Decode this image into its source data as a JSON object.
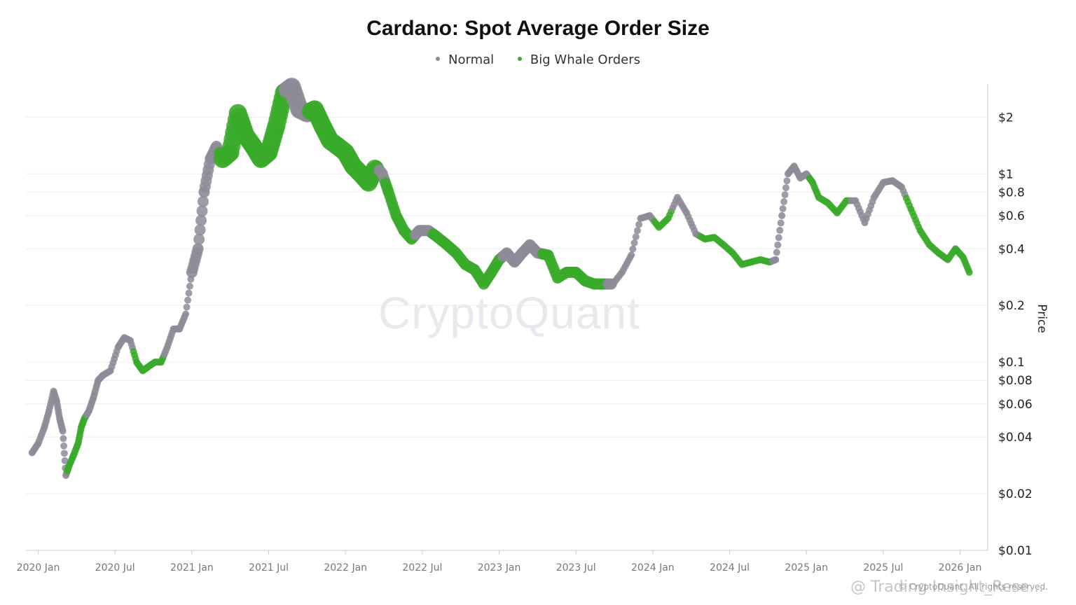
{
  "chart_data": {
    "type": "scatter",
    "title": "Cardano: Spot Average Order Size",
    "ylabel": "Price",
    "yscale": "log",
    "ylim": [
      0.01,
      3
    ],
    "xlim": [
      "2019-12",
      "2026-02"
    ],
    "grid": true,
    "legend_position": "top-center",
    "legend": [
      {
        "name": "Normal",
        "color": "#8e8b99"
      },
      {
        "name": "Big Whale Orders",
        "color": "#3aaa2a"
      }
    ],
    "y_ticks": [
      {
        "value": 2,
        "label": "$2"
      },
      {
        "value": 1,
        "label": "$1"
      },
      {
        "value": 0.8,
        "label": "$0.8"
      },
      {
        "value": 0.6,
        "label": "$0.6"
      },
      {
        "value": 0.4,
        "label": "$0.4"
      },
      {
        "value": 0.2,
        "label": "$0.2"
      },
      {
        "value": 0.1,
        "label": "$0.1"
      },
      {
        "value": 0.08,
        "label": "$0.08"
      },
      {
        "value": 0.06,
        "label": "$0.06"
      },
      {
        "value": 0.04,
        "label": "$0.04"
      },
      {
        "value": 0.02,
        "label": "$0.02"
      },
      {
        "value": 0.01,
        "label": "$0.01"
      }
    ],
    "x_ticks": [
      {
        "value": 2020.0,
        "label": "2020 Jan"
      },
      {
        "value": 2020.5,
        "label": "2020 Jul"
      },
      {
        "value": 2021.0,
        "label": "2021 Jan"
      },
      {
        "value": 2021.5,
        "label": "2021 Jul"
      },
      {
        "value": 2022.0,
        "label": "2022 Jan"
      },
      {
        "value": 2022.5,
        "label": "2022 Jul"
      },
      {
        "value": 2023.0,
        "label": "2023 Jan"
      },
      {
        "value": 2023.5,
        "label": "2023 Jul"
      },
      {
        "value": 2024.0,
        "label": "2024 Jan"
      },
      {
        "value": 2024.5,
        "label": "2024 Jul"
      },
      {
        "value": 2025.0,
        "label": "2025 Jan"
      },
      {
        "value": 2025.5,
        "label": "2025 Jul"
      },
      {
        "value": 2026.0,
        "label": "2026 Jan"
      }
    ],
    "series": [
      {
        "t": 2019.96,
        "price": 0.033,
        "order": "Normal",
        "size": 1
      },
      {
        "t": 2020.0,
        "price": 0.037,
        "order": "Normal",
        "size": 1
      },
      {
        "t": 2020.04,
        "price": 0.045,
        "order": "Normal",
        "size": 1
      },
      {
        "t": 2020.07,
        "price": 0.055,
        "order": "Normal",
        "size": 1
      },
      {
        "t": 2020.1,
        "price": 0.07,
        "order": "Normal",
        "size": 1
      },
      {
        "t": 2020.12,
        "price": 0.062,
        "order": "Normal",
        "size": 1
      },
      {
        "t": 2020.14,
        "price": 0.05,
        "order": "Normal",
        "size": 1
      },
      {
        "t": 2020.16,
        "price": 0.043,
        "order": "Normal",
        "size": 1
      },
      {
        "t": 2020.18,
        "price": 0.025,
        "order": "Normal",
        "size": 1
      },
      {
        "t": 2020.2,
        "price": 0.028,
        "order": "Big Whale Orders",
        "size": 1
      },
      {
        "t": 2020.23,
        "price": 0.032,
        "order": "Big Whale Orders",
        "size": 1
      },
      {
        "t": 2020.26,
        "price": 0.037,
        "order": "Big Whale Orders",
        "size": 1
      },
      {
        "t": 2020.28,
        "price": 0.045,
        "order": "Big Whale Orders",
        "size": 1
      },
      {
        "t": 2020.3,
        "price": 0.05,
        "order": "Big Whale Orders",
        "size": 1
      },
      {
        "t": 2020.33,
        "price": 0.055,
        "order": "Normal",
        "size": 1
      },
      {
        "t": 2020.36,
        "price": 0.065,
        "order": "Normal",
        "size": 1
      },
      {
        "t": 2020.39,
        "price": 0.08,
        "order": "Normal",
        "size": 1
      },
      {
        "t": 2020.42,
        "price": 0.085,
        "order": "Normal",
        "size": 1
      },
      {
        "t": 2020.47,
        "price": 0.09,
        "order": "Normal",
        "size": 1
      },
      {
        "t": 2020.52,
        "price": 0.12,
        "order": "Normal",
        "size": 1
      },
      {
        "t": 2020.56,
        "price": 0.135,
        "order": "Normal",
        "size": 1
      },
      {
        "t": 2020.6,
        "price": 0.13,
        "order": "Normal",
        "size": 1
      },
      {
        "t": 2020.64,
        "price": 0.1,
        "order": "Big Whale Orders",
        "size": 1
      },
      {
        "t": 2020.68,
        "price": 0.09,
        "order": "Big Whale Orders",
        "size": 1
      },
      {
        "t": 2020.72,
        "price": 0.095,
        "order": "Big Whale Orders",
        "size": 1
      },
      {
        "t": 2020.76,
        "price": 0.1,
        "order": "Big Whale Orders",
        "size": 1
      },
      {
        "t": 2020.8,
        "price": 0.1,
        "order": "Big Whale Orders",
        "size": 1
      },
      {
        "t": 2020.84,
        "price": 0.12,
        "order": "Normal",
        "size": 1
      },
      {
        "t": 2020.88,
        "price": 0.15,
        "order": "Normal",
        "size": 1
      },
      {
        "t": 2020.92,
        "price": 0.15,
        "order": "Normal",
        "size": 1
      },
      {
        "t": 2020.96,
        "price": 0.18,
        "order": "Normal",
        "size": 1
      },
      {
        "t": 2021.0,
        "price": 0.3,
        "order": "Normal",
        "size": 2
      },
      {
        "t": 2021.04,
        "price": 0.4,
        "order": "Normal",
        "size": 2
      },
      {
        "t": 2021.08,
        "price": 0.8,
        "order": "Normal",
        "size": 2
      },
      {
        "t": 2021.12,
        "price": 1.2,
        "order": "Normal",
        "size": 2
      },
      {
        "t": 2021.16,
        "price": 1.4,
        "order": "Normal",
        "size": 2
      },
      {
        "t": 2021.2,
        "price": 1.2,
        "order": "Big Whale Orders",
        "size": 3
      },
      {
        "t": 2021.25,
        "price": 1.3,
        "order": "Big Whale Orders",
        "size": 3
      },
      {
        "t": 2021.3,
        "price": 2.1,
        "order": "Big Whale Orders",
        "size": 3
      },
      {
        "t": 2021.35,
        "price": 1.6,
        "order": "Big Whale Orders",
        "size": 3
      },
      {
        "t": 2021.4,
        "price": 1.4,
        "order": "Big Whale Orders",
        "size": 3
      },
      {
        "t": 2021.45,
        "price": 1.2,
        "order": "Big Whale Orders",
        "size": 3
      },
      {
        "t": 2021.5,
        "price": 1.3,
        "order": "Big Whale Orders",
        "size": 3
      },
      {
        "t": 2021.55,
        "price": 1.8,
        "order": "Big Whale Orders",
        "size": 3
      },
      {
        "t": 2021.6,
        "price": 2.7,
        "order": "Big Whale Orders",
        "size": 3
      },
      {
        "t": 2021.65,
        "price": 2.9,
        "order": "Normal",
        "size": 3
      },
      {
        "t": 2021.7,
        "price": 2.2,
        "order": "Normal",
        "size": 3
      },
      {
        "t": 2021.75,
        "price": 2.1,
        "order": "Normal",
        "size": 3
      },
      {
        "t": 2021.8,
        "price": 2.2,
        "order": "Big Whale Orders",
        "size": 3
      },
      {
        "t": 2021.85,
        "price": 1.8,
        "order": "Big Whale Orders",
        "size": 3
      },
      {
        "t": 2021.9,
        "price": 1.5,
        "order": "Big Whale Orders",
        "size": 3
      },
      {
        "t": 2021.95,
        "price": 1.4,
        "order": "Big Whale Orders",
        "size": 3
      },
      {
        "t": 2022.0,
        "price": 1.3,
        "order": "Big Whale Orders",
        "size": 3
      },
      {
        "t": 2022.05,
        "price": 1.1,
        "order": "Big Whale Orders",
        "size": 3
      },
      {
        "t": 2022.1,
        "price": 1.0,
        "order": "Big Whale Orders",
        "size": 3
      },
      {
        "t": 2022.15,
        "price": 0.9,
        "order": "Big Whale Orders",
        "size": 3
      },
      {
        "t": 2022.2,
        "price": 1.1,
        "order": "Big Whale Orders",
        "size": 2
      },
      {
        "t": 2022.24,
        "price": 1.0,
        "order": "Normal",
        "size": 2
      },
      {
        "t": 2022.28,
        "price": 0.8,
        "order": "Big Whale Orders",
        "size": 2
      },
      {
        "t": 2022.33,
        "price": 0.6,
        "order": "Big Whale Orders",
        "size": 2
      },
      {
        "t": 2022.38,
        "price": 0.5,
        "order": "Big Whale Orders",
        "size": 2
      },
      {
        "t": 2022.43,
        "price": 0.45,
        "order": "Big Whale Orders",
        "size": 2
      },
      {
        "t": 2022.48,
        "price": 0.5,
        "order": "Normal",
        "size": 2
      },
      {
        "t": 2022.54,
        "price": 0.5,
        "order": "Normal",
        "size": 2
      },
      {
        "t": 2022.6,
        "price": 0.46,
        "order": "Big Whale Orders",
        "size": 2
      },
      {
        "t": 2022.66,
        "price": 0.42,
        "order": "Big Whale Orders",
        "size": 2
      },
      {
        "t": 2022.72,
        "price": 0.38,
        "order": "Big Whale Orders",
        "size": 2
      },
      {
        "t": 2022.78,
        "price": 0.33,
        "order": "Big Whale Orders",
        "size": 2
      },
      {
        "t": 2022.84,
        "price": 0.31,
        "order": "Big Whale Orders",
        "size": 2
      },
      {
        "t": 2022.9,
        "price": 0.26,
        "order": "Big Whale Orders",
        "size": 2
      },
      {
        "t": 2022.95,
        "price": 0.3,
        "order": "Big Whale Orders",
        "size": 2
      },
      {
        "t": 2023.0,
        "price": 0.35,
        "order": "Big Whale Orders",
        "size": 2
      },
      {
        "t": 2023.05,
        "price": 0.38,
        "order": "Normal",
        "size": 2
      },
      {
        "t": 2023.1,
        "price": 0.34,
        "order": "Normal",
        "size": 2
      },
      {
        "t": 2023.15,
        "price": 0.38,
        "order": "Normal",
        "size": 2
      },
      {
        "t": 2023.2,
        "price": 0.42,
        "order": "Normal",
        "size": 2
      },
      {
        "t": 2023.25,
        "price": 0.38,
        "order": "Normal",
        "size": 2
      },
      {
        "t": 2023.32,
        "price": 0.37,
        "order": "Big Whale Orders",
        "size": 2
      },
      {
        "t": 2023.38,
        "price": 0.28,
        "order": "Big Whale Orders",
        "size": 2
      },
      {
        "t": 2023.44,
        "price": 0.3,
        "order": "Big Whale Orders",
        "size": 2
      },
      {
        "t": 2023.5,
        "price": 0.3,
        "order": "Big Whale Orders",
        "size": 2
      },
      {
        "t": 2023.56,
        "price": 0.27,
        "order": "Big Whale Orders",
        "size": 2
      },
      {
        "t": 2023.62,
        "price": 0.26,
        "order": "Big Whale Orders",
        "size": 2
      },
      {
        "t": 2023.68,
        "price": 0.26,
        "order": "Big Whale Orders",
        "size": 2
      },
      {
        "t": 2023.74,
        "price": 0.26,
        "order": "Normal",
        "size": 1
      },
      {
        "t": 2023.8,
        "price": 0.3,
        "order": "Normal",
        "size": 1
      },
      {
        "t": 2023.86,
        "price": 0.37,
        "order": "Normal",
        "size": 1
      },
      {
        "t": 2023.92,
        "price": 0.58,
        "order": "Normal",
        "size": 1
      },
      {
        "t": 2023.98,
        "price": 0.6,
        "order": "Normal",
        "size": 1
      },
      {
        "t": 2024.04,
        "price": 0.52,
        "order": "Big Whale Orders",
        "size": 1
      },
      {
        "t": 2024.1,
        "price": 0.58,
        "order": "Big Whale Orders",
        "size": 1
      },
      {
        "t": 2024.16,
        "price": 0.75,
        "order": "Normal",
        "size": 1
      },
      {
        "t": 2024.22,
        "price": 0.62,
        "order": "Normal",
        "size": 1
      },
      {
        "t": 2024.28,
        "price": 0.48,
        "order": "Normal",
        "size": 1
      },
      {
        "t": 2024.34,
        "price": 0.45,
        "order": "Big Whale Orders",
        "size": 1
      },
      {
        "t": 2024.4,
        "price": 0.46,
        "order": "Big Whale Orders",
        "size": 1
      },
      {
        "t": 2024.46,
        "price": 0.42,
        "order": "Big Whale Orders",
        "size": 1
      },
      {
        "t": 2024.52,
        "price": 0.38,
        "order": "Big Whale Orders",
        "size": 1
      },
      {
        "t": 2024.58,
        "price": 0.33,
        "order": "Big Whale Orders",
        "size": 1
      },
      {
        "t": 2024.64,
        "price": 0.34,
        "order": "Big Whale Orders",
        "size": 1
      },
      {
        "t": 2024.7,
        "price": 0.35,
        "order": "Big Whale Orders",
        "size": 1
      },
      {
        "t": 2024.76,
        "price": 0.34,
        "order": "Big Whale Orders",
        "size": 1
      },
      {
        "t": 2024.8,
        "price": 0.35,
        "order": "Normal",
        "size": 1
      },
      {
        "t": 2024.84,
        "price": 0.6,
        "order": "Normal",
        "size": 1
      },
      {
        "t": 2024.88,
        "price": 1.0,
        "order": "Normal",
        "size": 1
      },
      {
        "t": 2024.92,
        "price": 1.1,
        "order": "Normal",
        "size": 1
      },
      {
        "t": 2024.96,
        "price": 0.95,
        "order": "Normal",
        "size": 1
      },
      {
        "t": 2025.0,
        "price": 1.0,
        "order": "Normal",
        "size": 1
      },
      {
        "t": 2025.04,
        "price": 0.9,
        "order": "Big Whale Orders",
        "size": 1
      },
      {
        "t": 2025.08,
        "price": 0.75,
        "order": "Big Whale Orders",
        "size": 1
      },
      {
        "t": 2025.14,
        "price": 0.7,
        "order": "Big Whale Orders",
        "size": 1
      },
      {
        "t": 2025.2,
        "price": 0.62,
        "order": "Big Whale Orders",
        "size": 1
      },
      {
        "t": 2025.26,
        "price": 0.72,
        "order": "Big Whale Orders",
        "size": 1
      },
      {
        "t": 2025.32,
        "price": 0.72,
        "order": "Normal",
        "size": 1
      },
      {
        "t": 2025.38,
        "price": 0.55,
        "order": "Normal",
        "size": 1
      },
      {
        "t": 2025.44,
        "price": 0.75,
        "order": "Normal",
        "size": 1
      },
      {
        "t": 2025.5,
        "price": 0.9,
        "order": "Normal",
        "size": 1
      },
      {
        "t": 2025.56,
        "price": 0.92,
        "order": "Normal",
        "size": 1
      },
      {
        "t": 2025.62,
        "price": 0.85,
        "order": "Normal",
        "size": 1
      },
      {
        "t": 2025.68,
        "price": 0.65,
        "order": "Big Whale Orders",
        "size": 1
      },
      {
        "t": 2025.74,
        "price": 0.5,
        "order": "Big Whale Orders",
        "size": 1
      },
      {
        "t": 2025.8,
        "price": 0.42,
        "order": "Big Whale Orders",
        "size": 1
      },
      {
        "t": 2025.86,
        "price": 0.38,
        "order": "Big Whale Orders",
        "size": 1
      },
      {
        "t": 2025.92,
        "price": 0.35,
        "order": "Big Whale Orders",
        "size": 1
      },
      {
        "t": 2025.97,
        "price": 0.4,
        "order": "Big Whale Orders",
        "size": 1
      },
      {
        "t": 2026.02,
        "price": 0.36,
        "order": "Big Whale Orders",
        "size": 1
      },
      {
        "t": 2026.06,
        "price": 0.3,
        "order": "Big Whale Orders",
        "size": 1
      }
    ]
  },
  "watermark": "CryptoQuant",
  "copyright": "© CryptoQuant. All rights reserved.",
  "overlay_tag": "@ Trading Insight_Rese..."
}
